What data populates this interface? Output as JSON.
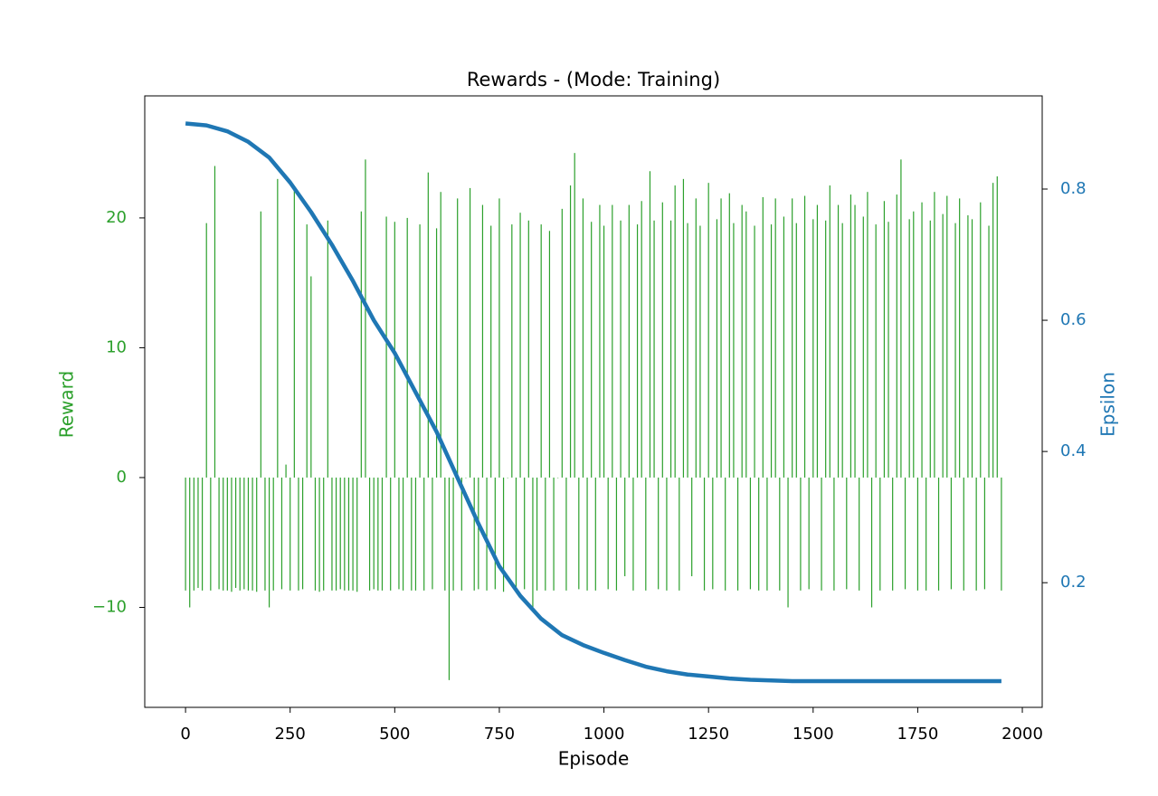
{
  "chart_data": {
    "type": "bar-line",
    "title": "Rewards - (Mode: Training)",
    "xlabel": "Episode",
    "ylabel": "Reward",
    "y2label": "Epsilon",
    "xlim": [
      -97.5,
      2047.5
    ],
    "xticks": [
      0,
      250,
      500,
      750,
      1000,
      1250,
      1500,
      1750,
      2000
    ],
    "ylim": [
      -17.7,
      29.4
    ],
    "yticks": [
      {
        "value": -10,
        "label": "−10"
      },
      0,
      10,
      20
    ],
    "y2lim": [
      0.01,
      0.942
    ],
    "y2ticks": [
      0.2,
      0.4,
      0.6,
      0.8
    ],
    "series": [
      {
        "type": "bar",
        "color": "#2ca02c",
        "x": [
          0,
          10,
          20,
          30,
          40,
          50,
          60,
          70,
          80,
          90,
          100,
          110,
          120,
          130,
          140,
          150,
          160,
          170,
          180,
          190,
          200,
          210,
          220,
          230,
          240,
          250,
          260,
          270,
          280,
          290,
          300,
          310,
          320,
          330,
          340,
          350,
          360,
          370,
          380,
          390,
          400,
          410,
          420,
          430,
          440,
          450,
          460,
          470,
          480,
          490,
          500,
          510,
          520,
          530,
          540,
          550,
          560,
          570,
          580,
          590,
          600,
          610,
          620,
          630,
          640,
          650,
          660,
          670,
          680,
          690,
          700,
          710,
          720,
          730,
          740,
          750,
          760,
          770,
          780,
          790,
          800,
          810,
          820,
          830,
          840,
          850,
          860,
          870,
          880,
          890,
          900,
          910,
          920,
          930,
          940,
          950,
          960,
          970,
          980,
          990,
          1000,
          1010,
          1020,
          1030,
          1040,
          1050,
          1060,
          1070,
          1080,
          1090,
          1100,
          1110,
          1120,
          1130,
          1140,
          1150,
          1160,
          1170,
          1180,
          1190,
          1200,
          1210,
          1220,
          1230,
          1240,
          1250,
          1260,
          1270,
          1280,
          1290,
          1300,
          1310,
          1320,
          1330,
          1340,
          1350,
          1360,
          1370,
          1380,
          1390,
          1400,
          1410,
          1420,
          1430,
          1440,
          1450,
          1460,
          1470,
          1480,
          1490,
          1500,
          1510,
          1520,
          1530,
          1540,
          1550,
          1560,
          1570,
          1580,
          1590,
          1600,
          1610,
          1620,
          1630,
          1640,
          1650,
          1660,
          1670,
          1680,
          1690,
          1700,
          1710,
          1720,
          1730,
          1740,
          1750,
          1760,
          1770,
          1780,
          1790,
          1800,
          1810,
          1820,
          1830,
          1840,
          1850,
          1860,
          1870,
          1880,
          1890,
          1900,
          1910,
          1920,
          1930,
          1940,
          1950
        ],
        "values": [
          -8.7,
          -10,
          -8.7,
          -8.5,
          -8.7,
          19.6,
          -8.7,
          24,
          -8.6,
          -8.7,
          -8.7,
          -8.8,
          -8.5,
          -8.7,
          -8.6,
          -8.7,
          -8.7,
          -8.8,
          20.5,
          -8.7,
          -10,
          -8.7,
          23,
          -8.6,
          1,
          -8.7,
          22.2,
          -8.7,
          -8.6,
          19.5,
          15.5,
          -8.7,
          -8.8,
          -8.7,
          19.8,
          -8.7,
          -8.7,
          -8.6,
          -8.7,
          -8.7,
          -8.7,
          -8.8,
          20.5,
          24.5,
          -8.7,
          -8.6,
          -8.7,
          -8.7,
          20.1,
          -8.7,
          19.7,
          -8.6,
          -8.7,
          20,
          -8.7,
          -8.7,
          19.5,
          -8.7,
          23.5,
          -8.6,
          19.2,
          22,
          -8.7,
          -15.6,
          -8.7,
          21.5,
          -8.7,
          0,
          22.3,
          -8.7,
          -8.6,
          21,
          -8.7,
          19.4,
          -8.6,
          21.5,
          -8.8,
          0,
          19.5,
          -8.7,
          20.4,
          -8.6,
          19.8,
          -10,
          -8.7,
          19.5,
          -8.7,
          19,
          -8.7,
          0,
          20.7,
          -8.7,
          22.5,
          25,
          -8.6,
          21.5,
          -8.7,
          19.7,
          -8.7,
          21,
          19.4,
          -8.6,
          21,
          -8.7,
          19.8,
          -7.6,
          21,
          -8.7,
          19.5,
          21.3,
          -8.7,
          23.6,
          19.8,
          -8.6,
          21.2,
          -8.7,
          19.8,
          22.5,
          -8.7,
          23,
          19.6,
          -7.6,
          21.5,
          19.4,
          -8.7,
          22.7,
          -8.6,
          19.9,
          21.5,
          -8.7,
          21.9,
          19.6,
          -8.7,
          21,
          20.5,
          -8.6,
          19.4,
          -8.7,
          21.6,
          -8.7,
          19.5,
          21.5,
          -8.7,
          20.1,
          -10,
          21.5,
          19.6,
          -8.7,
          21.7,
          -8.6,
          19.9,
          21,
          -8.7,
          19.8,
          22.5,
          -8.7,
          21,
          19.6,
          -8.6,
          21.8,
          21,
          -8.7,
          20.1,
          22,
          -10,
          19.5,
          -8.7,
          21.3,
          19.7,
          -8.7,
          21.8,
          24.5,
          -8.6,
          19.9,
          20.5,
          -8.7,
          21.2,
          -8.7,
          19.8,
          22,
          -8.7,
          20.3,
          21.7,
          -8.6,
          19.6,
          21.5,
          -8.7,
          20.2,
          19.9,
          -8.7,
          21.2,
          -8.6,
          19.4,
          22.7,
          23.2,
          -8.7
        ]
      },
      {
        "type": "line",
        "axis": "y2",
        "color": "#1f77b4",
        "x": [
          0,
          50,
          100,
          150,
          200,
          250,
          300,
          350,
          400,
          450,
          500,
          550,
          600,
          650,
          700,
          750,
          800,
          850,
          900,
          950,
          1000,
          1050,
          1100,
          1150,
          1200,
          1250,
          1300,
          1350,
          1400,
          1450,
          1500,
          1550,
          1600,
          1650,
          1700,
          1750,
          1800,
          1850,
          1900,
          1950
        ],
        "values": [
          0.9,
          0.897,
          0.888,
          0.872,
          0.848,
          0.81,
          0.765,
          0.715,
          0.66,
          0.6,
          0.55,
          0.49,
          0.43,
          0.36,
          0.29,
          0.225,
          0.18,
          0.145,
          0.12,
          0.105,
          0.093,
          0.082,
          0.072,
          0.065,
          0.06,
          0.057,
          0.054,
          0.052,
          0.051,
          0.05,
          0.05,
          0.05,
          0.05,
          0.05,
          0.05,
          0.05,
          0.05,
          0.05,
          0.05,
          0.05
        ]
      }
    ]
  }
}
